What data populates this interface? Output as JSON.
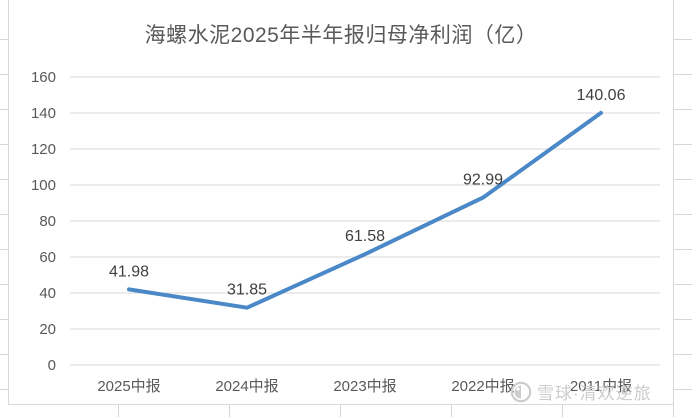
{
  "chart_data": {
    "type": "line",
    "title": "海螺水泥2025年半年报归母净利润（亿）",
    "categories": [
      "2025中报",
      "2024中报",
      "2023中报",
      "2022中报",
      "2011中报"
    ],
    "values": [
      41.98,
      31.85,
      61.58,
      92.99,
      140.06
    ],
    "data_labels": [
      "41.98",
      "31.85",
      "61.58",
      "92.99",
      "140.06"
    ],
    "xlabel": "",
    "ylabel": "",
    "ylim": [
      0,
      160
    ],
    "ytick_step": 20,
    "ytick_labels": [
      "0",
      "20",
      "40",
      "60",
      "80",
      "100",
      "120",
      "140",
      "160"
    ],
    "grid": true,
    "legend": "none"
  },
  "colors": {
    "line": "#4a88c8",
    "title_text": "#595959",
    "axis_text": "#595959",
    "data_label_text": "#3f3f3f",
    "gridline": "#d9d9d9",
    "chart_border": "#d9d9d9",
    "sheet_gridline": "#d6d6d6",
    "watermark": "#cccccc"
  },
  "watermark": {
    "logo": "xueqiu-snowball-icon",
    "text": "雪球·清欢逆旅"
  }
}
